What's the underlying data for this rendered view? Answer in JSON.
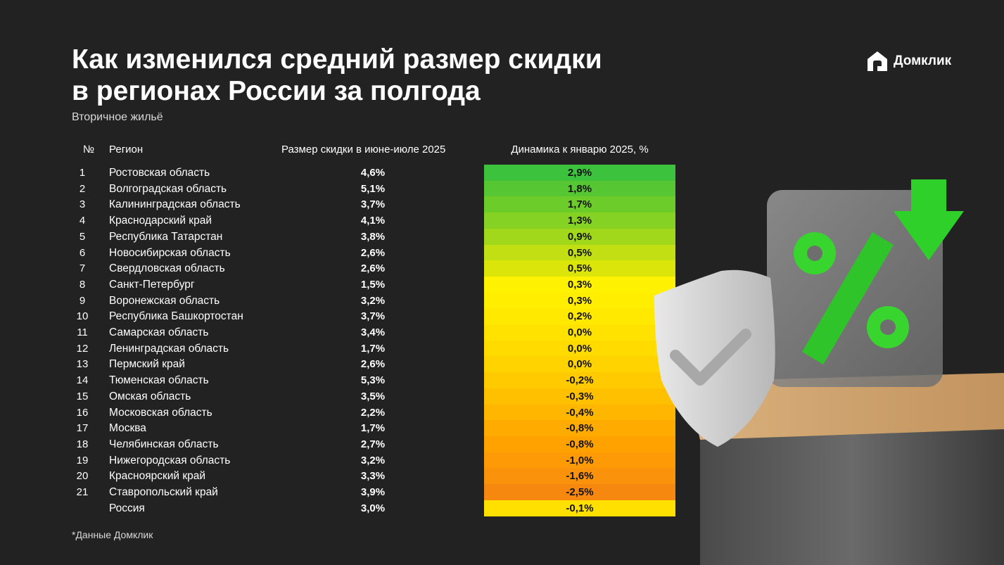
{
  "title_line1": "Как изменился средний размер скидки",
  "title_line2": "в регионах России за полгода",
  "subtitle": "Вторичное жильё",
  "logo": {
    "text": "Домклик",
    "icon": "house-logo-icon"
  },
  "footnote": "*Данные Домклик",
  "chart_data": {
    "type": "table",
    "columns": [
      "№",
      "Регион",
      "Размер скидки в июне-июле 2025",
      "Динамика к январю 2025, %"
    ],
    "rows": [
      {
        "num": "1",
        "region": "Ростовская область",
        "discount": "4,6%",
        "dynamics": "2,9%",
        "color": "#3cc23c"
      },
      {
        "num": "2",
        "region": "Волгоградская область",
        "discount": "5,1%",
        "dynamics": "1,8%",
        "color": "#56c732"
      },
      {
        "num": "3",
        "region": "Калининградская область",
        "discount": "3,7%",
        "dynamics": "1,7%",
        "color": "#6ccc2a"
      },
      {
        "num": "4",
        "region": "Краснодарский край",
        "discount": "4,1%",
        "dynamics": "1,3%",
        "color": "#86d224"
      },
      {
        "num": "5",
        "region": "Республика Татарстан",
        "discount": "3,8%",
        "dynamics": "0,9%",
        "color": "#a2d81c"
      },
      {
        "num": "6",
        "region": "Новосибирская область",
        "discount": "2,6%",
        "dynamics": "0,5%",
        "color": "#c1df12"
      },
      {
        "num": "7",
        "region": "Свердловская область",
        "discount": "2,6%",
        "dynamics": "0,5%",
        "color": "#dce50a"
      },
      {
        "num": "8",
        "region": "Санкт-Петербург",
        "discount": "1,5%",
        "dynamics": "0,3%",
        "color": "#fff200"
      },
      {
        "num": "9",
        "region": "Воронежская область",
        "discount": "3,2%",
        "dynamics": "0,3%",
        "color": "#ffee00"
      },
      {
        "num": "10",
        "region": "Республика Башкортостан",
        "discount": "3,7%",
        "dynamics": "0,2%",
        "color": "#ffe900"
      },
      {
        "num": "11",
        "region": "Самарская область",
        "discount": "3,4%",
        "dynamics": "0,0%",
        "color": "#ffe200"
      },
      {
        "num": "12",
        "region": "Ленинградская область",
        "discount": "1,7%",
        "dynamics": "0,0%",
        "color": "#ffdb00"
      },
      {
        "num": "13",
        "region": "Пермский край",
        "discount": "2,6%",
        "dynamics": "0,0%",
        "color": "#ffd300"
      },
      {
        "num": "14",
        "region": "Тюменская область",
        "discount": "5,3%",
        "dynamics": "-0,2%",
        "color": "#ffca00"
      },
      {
        "num": "15",
        "region": "Омская область",
        "discount": "3,5%",
        "dynamics": "-0,3%",
        "color": "#ffc000"
      },
      {
        "num": "16",
        "region": "Московская область",
        "discount": "2,2%",
        "dynamics": "-0,4%",
        "color": "#ffb600"
      },
      {
        "num": "17",
        "region": "Москва",
        "discount": "1,7%",
        "dynamics": "-0,8%",
        "color": "#ffab00"
      },
      {
        "num": "18",
        "region": "Челябинская область",
        "discount": "2,7%",
        "dynamics": "-0,8%",
        "color": "#ffa200"
      },
      {
        "num": "19",
        "region": "Нижегородская область",
        "discount": "3,2%",
        "dynamics": "-1,0%",
        "color": "#fe9a06"
      },
      {
        "num": "20",
        "region": "Красноярский край",
        "discount": "3,3%",
        "dynamics": "-1,6%",
        "color": "#fb920b"
      },
      {
        "num": "21",
        "region": "Ставропольский край",
        "discount": "3,9%",
        "dynamics": "-2,5%",
        "color": "#f68810"
      },
      {
        "num": "",
        "region": "Россия",
        "discount": "3,0%",
        "dynamics": "-0,1%",
        "color": "#ffe000"
      }
    ]
  }
}
